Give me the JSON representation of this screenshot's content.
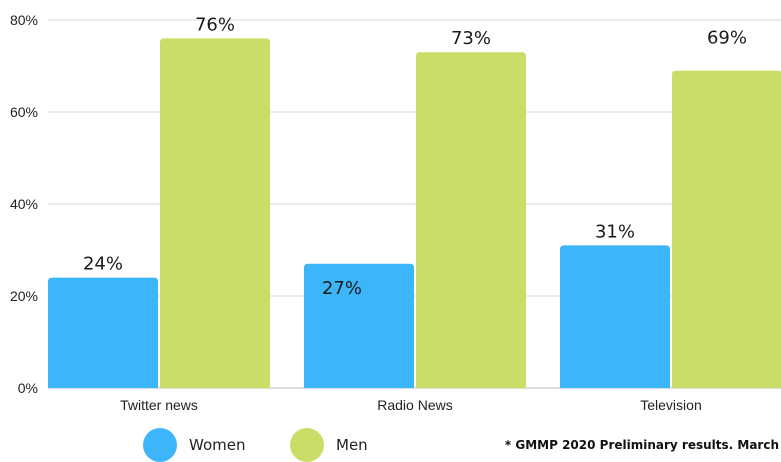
{
  "chart_data": {
    "type": "bar",
    "categories": [
      "Twitter news",
      "Radio News",
      "Television"
    ],
    "series": [
      {
        "name": "Women",
        "values": [
          24,
          27,
          31
        ],
        "labels": [
          "24%",
          "27%",
          "31%"
        ],
        "color": "#3db5fa"
      },
      {
        "name": "Men",
        "values": [
          76,
          73,
          69
        ],
        "labels": [
          "76%",
          "73%",
          "69%"
        ],
        "color": "#c9de66"
      }
    ],
    "ylim": [
      0,
      80
    ],
    "yticks": [
      0,
      20,
      40,
      60,
      80
    ],
    "ytick_labels": [
      "0%",
      "20%",
      "40%",
      "60%",
      "80%"
    ],
    "grid": true,
    "legend_placement": "bottom-left",
    "title": "",
    "xlabel": "",
    "ylabel": ""
  },
  "legend": {
    "women_label": "Women",
    "men_label": "Men"
  },
  "footnote": "* GMMP 2020 Preliminary results. March"
}
